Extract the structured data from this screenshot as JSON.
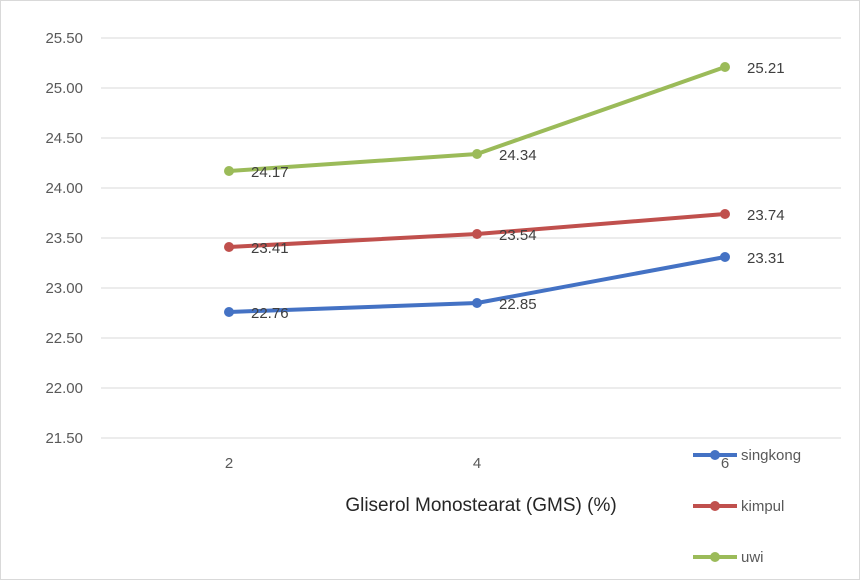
{
  "chart_data": {
    "type": "line",
    "title": "",
    "xlabel": "Gliserol Monostearat (GMS) (%)",
    "ylabel": "",
    "x": [
      2,
      4,
      6
    ],
    "categories": [
      "2",
      "4",
      "6"
    ],
    "ylim": [
      21.5,
      25.5
    ],
    "yticks": [
      "21.50",
      "22.00",
      "22.50",
      "23.00",
      "23.50",
      "24.00",
      "24.50",
      "25.00",
      "25.50"
    ],
    "grid": true,
    "legend": "bottom-right",
    "series": [
      {
        "name": "singkong",
        "color": "#4472c4",
        "values": [
          22.76,
          22.85,
          23.31
        ],
        "labels": [
          "22.76",
          "22.85",
          "23.31"
        ]
      },
      {
        "name": "kimpul",
        "color": "#c0504d",
        "values": [
          23.41,
          23.54,
          23.74
        ],
        "labels": [
          "23.41",
          "23.54",
          "23.74"
        ]
      },
      {
        "name": "uwi",
        "color": "#9bbb59",
        "values": [
          24.17,
          24.34,
          25.21
        ],
        "labels": [
          "24.17",
          "24.34",
          "25.21"
        ]
      }
    ]
  }
}
